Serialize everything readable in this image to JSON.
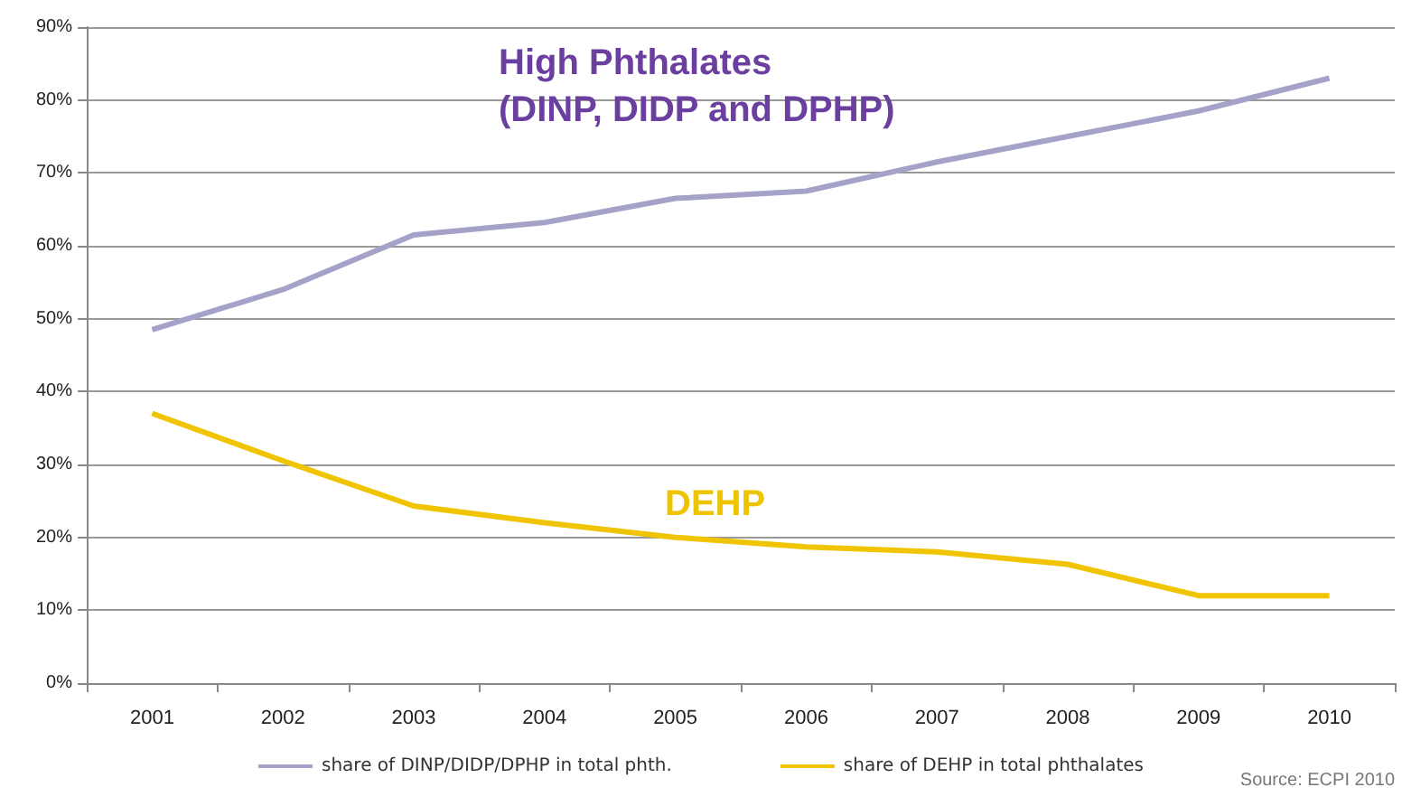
{
  "chart_data": {
    "type": "line",
    "categories": [
      "2001",
      "2002",
      "2003",
      "2004",
      "2005",
      "2006",
      "2007",
      "2008",
      "2009",
      "2010"
    ],
    "series": [
      {
        "name": "share of DINP/DIDP/DPHP in total phth.",
        "color": "#a4a2c8",
        "values": [
          48.5,
          54,
          61.5,
          63.2,
          66.5,
          67.5,
          71.5,
          75,
          78.5,
          83
        ]
      },
      {
        "name": "share of DEHP in total phthalates",
        "color": "#f0c400",
        "values": [
          37,
          30.5,
          24.3,
          22,
          20,
          18.7,
          18,
          16.3,
          12,
          12
        ]
      }
    ],
    "ylim": [
      0,
      90
    ],
    "yticks": [
      {
        "value": 0,
        "label": "0%"
      },
      {
        "value": 10,
        "label": "10%"
      },
      {
        "value": 20,
        "label": "20%"
      },
      {
        "value": 30,
        "label": "30%"
      },
      {
        "value": 40,
        "label": "40%"
      },
      {
        "value": 50,
        "label": "50%"
      },
      {
        "value": 60,
        "label": "60%"
      },
      {
        "value": 70,
        "label": "70%"
      },
      {
        "value": 80,
        "label": "80%"
      },
      {
        "value": 90,
        "label": "90%"
      }
    ],
    "grid": "y",
    "legend": "bottom",
    "marker": "none",
    "line_style": "solid",
    "annotations": [
      "High Phthalates\n(DINP, DIDP and DPHP)",
      "DEHP",
      "Source: ECPI 2010"
    ]
  }
}
